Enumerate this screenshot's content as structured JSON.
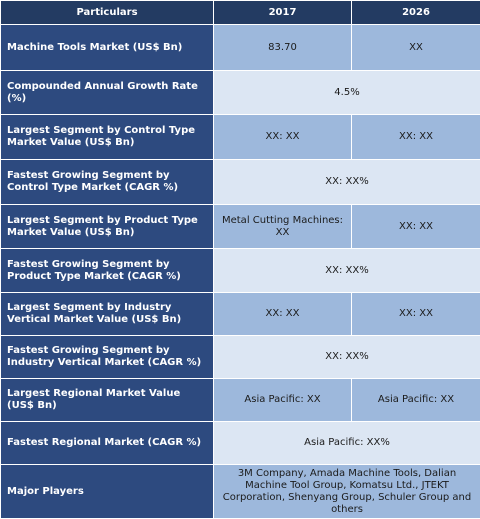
{
  "header": {
    "particulars": "Particulars",
    "year1": "2017",
    "year2": "2026"
  },
  "rows": [
    {
      "label": "Machine Tools Market (US$ Bn)",
      "v2017": "83.70",
      "v2026": "XX"
    },
    {
      "label": "Compounded Annual Growth Rate (%)",
      "value": "4.5%"
    },
    {
      "label": "Largest Segment by Control Type Market Value (US$ Bn)",
      "v2017": "XX: XX",
      "v2026": "XX: XX"
    },
    {
      "label": "Fastest Growing Segment by Control Type Market (CAGR %)",
      "value": "XX: XX%"
    },
    {
      "label": "Largest Segment by Product Type Market Value (US$ Bn)",
      "v2017": "Metal Cutting Machines: XX",
      "v2026": "XX: XX"
    },
    {
      "label": "Fastest Growing Segment by Product Type Market (CAGR %)",
      "value": "XX: XX%"
    },
    {
      "label": "Largest Segment by Industry Vertical Market Value (US$ Bn)",
      "v2017": "XX: XX",
      "v2026": "XX: XX"
    },
    {
      "label": "Fastest Growing Segment by Industry Vertical Market (CAGR %)",
      "value": "XX: XX%"
    },
    {
      "label": "Largest Regional Market Value (US$ Bn)",
      "v2017": "Asia Pacific: XX",
      "v2026": "Asia Pacific: XX"
    },
    {
      "label": "Fastest Regional Market (CAGR %)",
      "value": "Asia Pacific: XX%"
    },
    {
      "label": "Major Players",
      "value": "3M Company, Amada Machine Tools, Dalian Machine Tool Group, Komatsu Ltd., JTEKT Corporation, Shenyang Group, Schuler Group and others"
    }
  ],
  "colors": {
    "header_bg": "#233b62",
    "label_bg": "#2d4a7f",
    "value_dark_bg": "#9db8dc",
    "value_light_bg": "#dce6f3"
  }
}
